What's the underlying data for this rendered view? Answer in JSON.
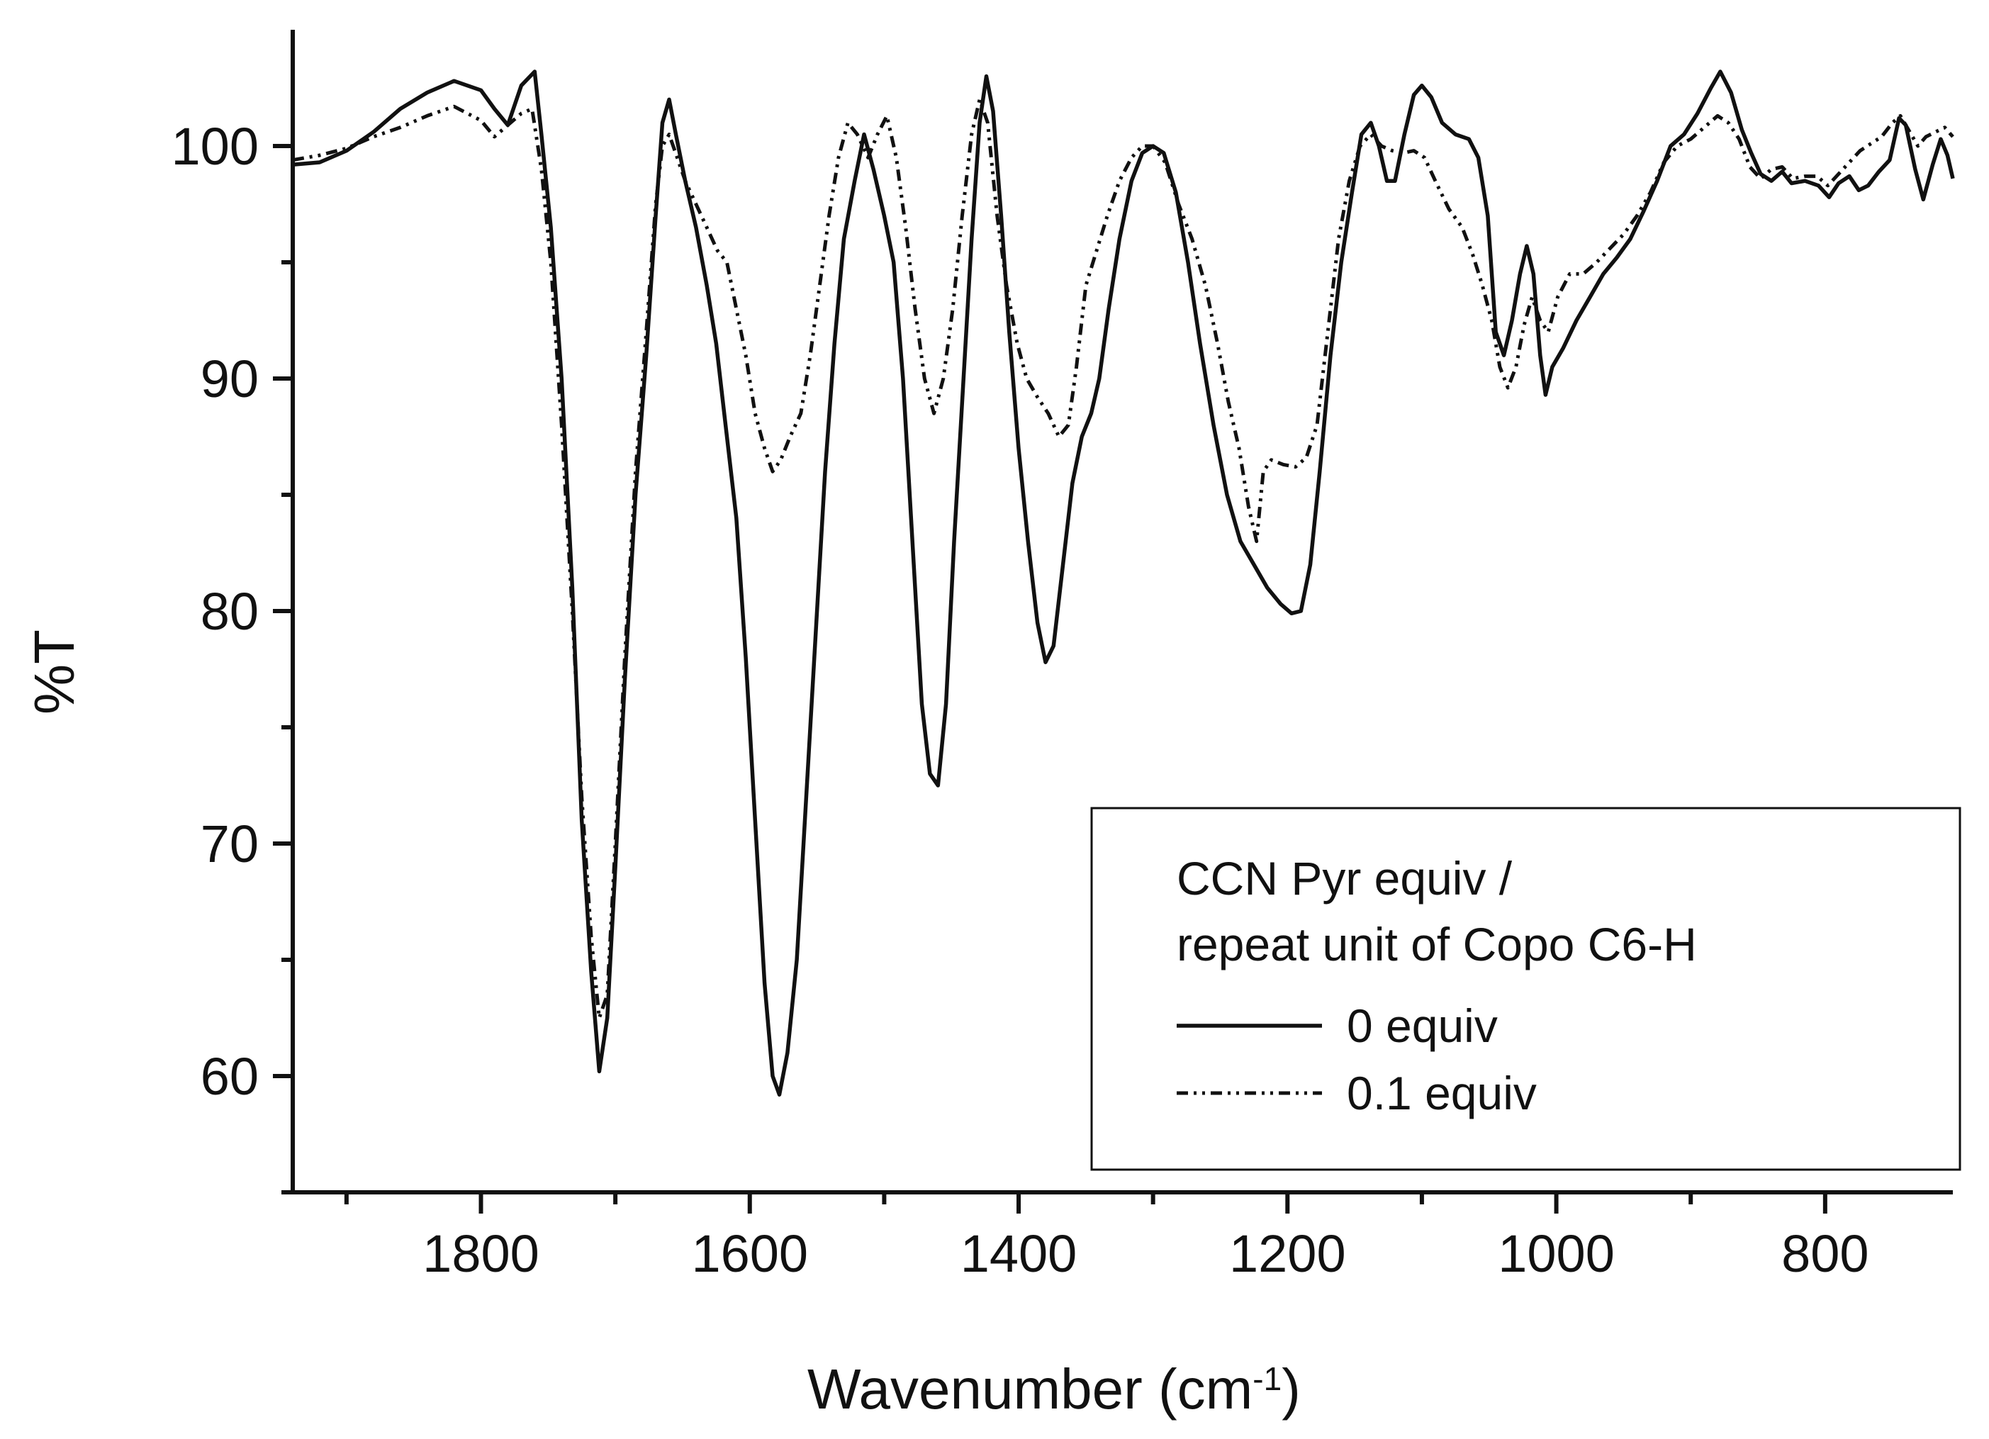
{
  "chart_data": {
    "type": "line",
    "title": "",
    "xlabel": "Wavenumber (cm",
    "xlabel_sup": "-1",
    "xlabel_close": ")",
    "ylabel": "%T",
    "xlim": [
      1940,
      705
    ],
    "ylim": [
      55,
      105
    ],
    "x_ticks": [
      1800,
      1600,
      1400,
      1200,
      1000,
      800
    ],
    "x_minor_ticks": [
      1900,
      1700,
      1500,
      1300,
      1100,
      900
    ],
    "y_ticks": [
      60,
      70,
      80,
      90,
      100
    ],
    "y_minor_ticks": [
      55,
      65,
      75,
      85,
      95
    ],
    "legend": {
      "title_line1": "CCN Pyr equiv /",
      "title_line2": "repeat unit of Copo C6-H",
      "position": "bottom-right"
    },
    "series": [
      {
        "name": "0 equiv",
        "style": "solid",
        "points": [
          [
            1940,
            99.2
          ],
          [
            1920,
            99.3
          ],
          [
            1900,
            99.8
          ],
          [
            1880,
            100.6
          ],
          [
            1860,
            101.6
          ],
          [
            1840,
            102.3
          ],
          [
            1820,
            102.8
          ],
          [
            1800,
            102.4
          ],
          [
            1790,
            101.6
          ],
          [
            1780,
            100.9
          ],
          [
            1770,
            102.6
          ],
          [
            1760,
            103.2
          ],
          [
            1755,
            100.5
          ],
          [
            1748,
            96.5
          ],
          [
            1740,
            90
          ],
          [
            1732,
            81
          ],
          [
            1725,
            71
          ],
          [
            1718,
            64.5
          ],
          [
            1712,
            60.2
          ],
          [
            1706,
            62.5
          ],
          [
            1700,
            69
          ],
          [
            1693,
            77
          ],
          [
            1685,
            85
          ],
          [
            1677,
            91
          ],
          [
            1670,
            97
          ],
          [
            1665,
            101
          ],
          [
            1660,
            102
          ],
          [
            1655,
            100.5
          ],
          [
            1648,
            98.5
          ],
          [
            1640,
            96.5
          ],
          [
            1632,
            94
          ],
          [
            1625,
            91.5
          ],
          [
            1618,
            88
          ],
          [
            1610,
            84
          ],
          [
            1603,
            78
          ],
          [
            1596,
            71
          ],
          [
            1589,
            64
          ],
          [
            1583,
            60
          ],
          [
            1578,
            59.2
          ],
          [
            1572,
            61
          ],
          [
            1565,
            65
          ],
          [
            1558,
            72
          ],
          [
            1551,
            79
          ],
          [
            1544,
            86
          ],
          [
            1537,
            91.5
          ],
          [
            1530,
            96
          ],
          [
            1522,
            98.5
          ],
          [
            1515,
            100.5
          ],
          [
            1508,
            99
          ],
          [
            1500,
            97
          ],
          [
            1493,
            95
          ],
          [
            1486,
            90
          ],
          [
            1479,
            83
          ],
          [
            1472,
            76
          ],
          [
            1466,
            73
          ],
          [
            1460,
            72.5
          ],
          [
            1454,
            76
          ],
          [
            1448,
            83
          ],
          [
            1441,
            90
          ],
          [
            1435,
            96
          ],
          [
            1429,
            101
          ],
          [
            1424,
            103
          ],
          [
            1419,
            101.5
          ],
          [
            1413,
            97
          ],
          [
            1407,
            92
          ],
          [
            1400,
            87
          ],
          [
            1393,
            83
          ],
          [
            1386,
            79.5
          ],
          [
            1380,
            77.8
          ],
          [
            1374,
            78.5
          ],
          [
            1367,
            82
          ],
          [
            1360,
            85.5
          ],
          [
            1353,
            87.5
          ],
          [
            1346,
            88.5
          ],
          [
            1340,
            90
          ],
          [
            1333,
            93
          ],
          [
            1325,
            96
          ],
          [
            1316,
            98.5
          ],
          [
            1308,
            99.7
          ],
          [
            1300,
            100
          ],
          [
            1292,
            99.7
          ],
          [
            1283,
            98
          ],
          [
            1274,
            95
          ],
          [
            1265,
            91.5
          ],
          [
            1255,
            88
          ],
          [
            1245,
            85
          ],
          [
            1235,
            83
          ],
          [
            1225,
            82
          ],
          [
            1215,
            81
          ],
          [
            1205,
            80.3
          ],
          [
            1197,
            79.9
          ],
          [
            1190,
            80
          ],
          [
            1183,
            82
          ],
          [
            1176,
            86
          ],
          [
            1168,
            91
          ],
          [
            1160,
            95
          ],
          [
            1152,
            98
          ],
          [
            1145,
            100.5
          ],
          [
            1138,
            101
          ],
          [
            1132,
            100
          ],
          [
            1126,
            98.5
          ],
          [
            1120,
            98.5
          ],
          [
            1113,
            100.5
          ],
          [
            1106,
            102.2
          ],
          [
            1100,
            102.6
          ],
          [
            1093,
            102.1
          ],
          [
            1085,
            101
          ],
          [
            1075,
            100.5
          ],
          [
            1065,
            100.3
          ],
          [
            1058,
            99.5
          ],
          [
            1051,
            97
          ],
          [
            1045,
            92
          ],
          [
            1039,
            91
          ],
          [
            1033,
            92.5
          ],
          [
            1027,
            94.5
          ],
          [
            1022,
            95.7
          ],
          [
            1017,
            94.5
          ],
          [
            1012,
            91
          ],
          [
            1008,
            89.3
          ],
          [
            1003,
            90.5
          ],
          [
            995,
            91.3
          ],
          [
            985,
            92.5
          ],
          [
            975,
            93.5
          ],
          [
            965,
            94.5
          ],
          [
            955,
            95.2
          ],
          [
            945,
            96
          ],
          [
            935,
            97.2
          ],
          [
            925,
            98.5
          ],
          [
            915,
            100
          ],
          [
            905,
            100.5
          ],
          [
            895,
            101.4
          ],
          [
            885,
            102.5
          ],
          [
            878,
            103.2
          ],
          [
            870,
            102.3
          ],
          [
            862,
            100.7
          ],
          [
            855,
            99.7
          ],
          [
            848,
            98.8
          ],
          [
            840,
            98.5
          ],
          [
            832,
            98.9
          ],
          [
            825,
            98.4
          ],
          [
            815,
            98.5
          ],
          [
            805,
            98.3
          ],
          [
            797,
            97.8
          ],
          [
            790,
            98.4
          ],
          [
            782,
            98.7
          ],
          [
            775,
            98.1
          ],
          [
            768,
            98.3
          ],
          [
            760,
            98.9
          ],
          [
            752,
            99.4
          ],
          [
            745,
            101.2
          ],
          [
            740,
            100.9
          ],
          [
            733,
            99
          ],
          [
            727,
            97.7
          ],
          [
            720,
            99.2
          ],
          [
            714,
            100.3
          ],
          [
            709,
            99.6
          ],
          [
            705,
            98.6
          ]
        ]
      },
      {
        "name": "0.1 equiv",
        "style": "dash-dot-dot",
        "points": [
          [
            1940,
            99.4
          ],
          [
            1920,
            99.6
          ],
          [
            1900,
            99.9
          ],
          [
            1880,
            100.4
          ],
          [
            1860,
            100.8
          ],
          [
            1840,
            101.3
          ],
          [
            1820,
            101.7
          ],
          [
            1800,
            101.1
          ],
          [
            1790,
            100.4
          ],
          [
            1780,
            100.9
          ],
          [
            1770,
            101.4
          ],
          [
            1762,
            101.6
          ],
          [
            1755,
            99
          ],
          [
            1748,
            95
          ],
          [
            1740,
            88
          ],
          [
            1732,
            80
          ],
          [
            1725,
            72
          ],
          [
            1718,
            66
          ],
          [
            1712,
            62.5
          ],
          [
            1706,
            63.5
          ],
          [
            1700,
            70
          ],
          [
            1693,
            78
          ],
          [
            1685,
            86
          ],
          [
            1677,
            92
          ],
          [
            1670,
            97.5
          ],
          [
            1665,
            100
          ],
          [
            1660,
            100.5
          ],
          [
            1654,
            99.5
          ],
          [
            1648,
            98.5
          ],
          [
            1640,
            97.5
          ],
          [
            1632,
            96.5
          ],
          [
            1624,
            95.5
          ],
          [
            1617,
            95
          ],
          [
            1610,
            93
          ],
          [
            1603,
            91
          ],
          [
            1596,
            88.5
          ],
          [
            1589,
            87
          ],
          [
            1583,
            86
          ],
          [
            1577,
            86.5
          ],
          [
            1570,
            87.5
          ],
          [
            1562,
            88.5
          ],
          [
            1555,
            91
          ],
          [
            1548,
            94
          ],
          [
            1541,
            97
          ],
          [
            1534,
            99.5
          ],
          [
            1527,
            101
          ],
          [
            1520,
            100.5
          ],
          [
            1512,
            99.5
          ],
          [
            1505,
            100.5
          ],
          [
            1498,
            101.3
          ],
          [
            1491,
            99.5
          ],
          [
            1484,
            96.5
          ],
          [
            1477,
            93
          ],
          [
            1470,
            90
          ],
          [
            1463,
            88.5
          ],
          [
            1456,
            90
          ],
          [
            1449,
            93
          ],
          [
            1442,
            97
          ],
          [
            1435,
            100.5
          ],
          [
            1429,
            102
          ],
          [
            1423,
            101
          ],
          [
            1416,
            97
          ],
          [
            1409,
            94
          ],
          [
            1401,
            91.5
          ],
          [
            1394,
            90
          ],
          [
            1386,
            89.2
          ],
          [
            1378,
            88.5
          ],
          [
            1370,
            87.5
          ],
          [
            1363,
            88
          ],
          [
            1357,
            90.5
          ],
          [
            1350,
            94
          ],
          [
            1342,
            95.5
          ],
          [
            1334,
            97
          ],
          [
            1325,
            98.5
          ],
          [
            1316,
            99.5
          ],
          [
            1308,
            100
          ],
          [
            1300,
            100
          ],
          [
            1291,
            99.3
          ],
          [
            1281,
            97.5
          ],
          [
            1271,
            96
          ],
          [
            1261,
            94
          ],
          [
            1252,
            91.5
          ],
          [
            1244,
            89
          ],
          [
            1236,
            87
          ],
          [
            1229,
            84.5
          ],
          [
            1223,
            83
          ],
          [
            1218,
            86
          ],
          [
            1212,
            86.5
          ],
          [
            1203,
            86.3
          ],
          [
            1194,
            86.2
          ],
          [
            1186,
            86.6
          ],
          [
            1178,
            88
          ],
          [
            1170,
            92
          ],
          [
            1162,
            96
          ],
          [
            1154,
            98.5
          ],
          [
            1146,
            100
          ],
          [
            1138,
            100.5
          ],
          [
            1130,
            100
          ],
          [
            1122,
            99.8
          ],
          [
            1114,
            99.7
          ],
          [
            1106,
            99.8
          ],
          [
            1098,
            99.5
          ],
          [
            1090,
            98.5
          ],
          [
            1080,
            97.3
          ],
          [
            1070,
            96.5
          ],
          [
            1062,
            95.3
          ],
          [
            1055,
            94
          ],
          [
            1048,
            92.5
          ],
          [
            1042,
            90.5
          ],
          [
            1036,
            89.6
          ],
          [
            1030,
            90.5
          ],
          [
            1024,
            92.3
          ],
          [
            1018,
            93.5
          ],
          [
            1012,
            92.5
          ],
          [
            1006,
            92
          ],
          [
            999,
            93.5
          ],
          [
            990,
            94.5
          ],
          [
            980,
            94.5
          ],
          [
            970,
            95
          ],
          [
            960,
            95.6
          ],
          [
            950,
            96.2
          ],
          [
            940,
            97
          ],
          [
            930,
            98
          ],
          [
            920,
            99.3
          ],
          [
            910,
            100
          ],
          [
            900,
            100.3
          ],
          [
            890,
            100.8
          ],
          [
            880,
            101.3
          ],
          [
            872,
            101
          ],
          [
            864,
            100.3
          ],
          [
            856,
            99.1
          ],
          [
            848,
            98.6
          ],
          [
            840,
            99
          ],
          [
            832,
            99.1
          ],
          [
            824,
            98.6
          ],
          [
            815,
            98.7
          ],
          [
            806,
            98.7
          ],
          [
            798,
            98.3
          ],
          [
            790,
            98.8
          ],
          [
            782,
            99.3
          ],
          [
            774,
            99.8
          ],
          [
            766,
            100.1
          ],
          [
            758,
            100.4
          ],
          [
            750,
            101
          ],
          [
            744,
            101.3
          ],
          [
            738,
            100.7
          ],
          [
            731,
            100
          ],
          [
            725,
            100.4
          ],
          [
            718,
            100.6
          ],
          [
            711,
            100.8
          ],
          [
            705,
            100.4
          ]
        ]
      }
    ]
  }
}
